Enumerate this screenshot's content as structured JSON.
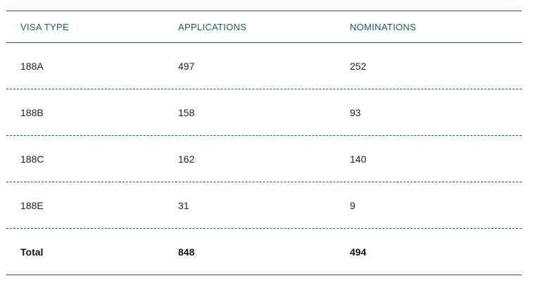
{
  "table": {
    "headers": [
      "VISA TYPE",
      "APPLICATIONS",
      "NOMINATIONS"
    ],
    "rows": [
      [
        "188A",
        "497",
        "252"
      ],
      [
        "188B",
        "158",
        "93"
      ],
      [
        "188C",
        "162",
        "140"
      ],
      [
        "188E",
        "31",
        "9"
      ]
    ],
    "total": [
      "Total",
      "848",
      "494"
    ]
  },
  "colors": {
    "accent": "#1d5a6b",
    "text": "#222222"
  }
}
